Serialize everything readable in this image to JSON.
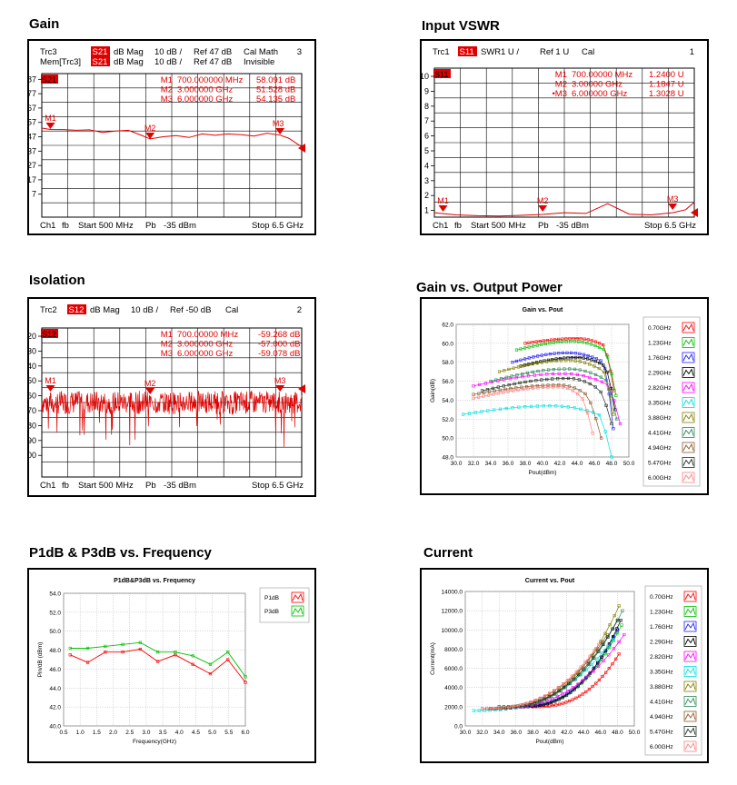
{
  "headings": {
    "gain": "Gain",
    "vswr": "Input VSWR",
    "isolation": "Isolation",
    "gain_pout": "Gain vs. Output Power",
    "p1db": "P1dB & P3dB vs. Frequency",
    "current": "Current"
  },
  "colors": {
    "trace_red": "#e00000",
    "trace_dark_red": "#b00000",
    "marker_red": "#e00000",
    "badge_bg": "#e00000",
    "grid": "#000000"
  },
  "vna_panels": [
    {
      "id": "gain",
      "header_lines": [
        {
          "trace": "Trc3",
          "param": "S21",
          "fmt": "dB Mag",
          "scale": "10 dB /",
          "ref": "Ref 47 dB",
          "extra": "Cal Math",
          "num": "3"
        },
        {
          "trace": "Mem[Trc3]",
          "param": "S21",
          "fmt": "dB Mag",
          "scale": "10 dB /",
          "ref": "Ref 47 dB",
          "extra": "Invisible",
          "num": ""
        }
      ],
      "badge": "S21",
      "y_ticks": [
        "87",
        "77",
        "67",
        "57",
        "47",
        "37",
        "27",
        "17",
        "7"
      ],
      "markers": [
        {
          "name": "M1",
          "freq": "700.000000 MHz",
          "value": "58.091 dB"
        },
        {
          "name": "M2",
          "freq": "3.000000 GHz",
          "value": "51.528 dB"
        },
        {
          "name": "M3",
          "freq": "6.000000 GHz",
          "value": "54.135 dB"
        }
      ],
      "footer": {
        "ch": "Ch1",
        "fb": "fb",
        "start": "Start  500 MHz",
        "pb": "Pb",
        "power": "-35 dBm",
        "stop": "Stop  6.5 GHz"
      }
    },
    {
      "id": "vswr",
      "header_lines": [
        {
          "trace": "Trc1",
          "param": "S11",
          "fmt": "SWR",
          "scale": "1 U /",
          "ref": "Ref 1 U",
          "extra": "Cal",
          "num": "1"
        }
      ],
      "badge": "S11",
      "y_ticks": [
        "10",
        "9",
        "8",
        "7",
        "6",
        "5",
        "4",
        "3",
        "2",
        "1"
      ],
      "markers": [
        {
          "name": "M1",
          "freq": "700.00000 MHz",
          "value": "1.2400  U"
        },
        {
          "name": "M2",
          "freq": "3.00000 GHz",
          "value": "1.1847  U"
        },
        {
          "name": "•M3",
          "freq": "6.000000 GHz",
          "value": "1.3028  U"
        }
      ],
      "footer": {
        "ch": "Ch1",
        "fb": "fb",
        "start": "Start  500 MHz",
        "pb": "Pb",
        "power": "-35 dBm",
        "stop": "Stop  6.5 GHz"
      }
    },
    {
      "id": "isolation",
      "header_lines": [
        {
          "trace": "Trc2",
          "param": "S12",
          "fmt": "dB Mag",
          "scale": "10 dB /",
          "ref": "Ref -50 dB",
          "extra": "Cal",
          "num": "2"
        }
      ],
      "badge": "S12",
      "y_ticks": [
        "-20",
        "-30",
        "-40",
        "-50",
        "-60",
        "-70",
        "-80",
        "-90",
        "-100"
      ],
      "markers": [
        {
          "name": "M1",
          "freq": "700.00000 MHz",
          "value": "-59.268 dB"
        },
        {
          "name": "M2",
          "freq": "3.000000 GHz",
          "value": "-57.000 dB"
        },
        {
          "name": "M3",
          "freq": "6.000000 GHz",
          "value": "-59.078 dB"
        }
      ],
      "footer": {
        "ch": "Ch1",
        "fb": "fb",
        "start": "Start  500 MHz",
        "pb": "Pb",
        "power": "-35 dBm",
        "stop": "Stop  6.5 GHz"
      }
    }
  ],
  "chart_data": [
    {
      "id": "gain",
      "type": "line",
      "x_range_ghz": [
        0.5,
        6.5
      ],
      "ylim": [
        -3,
        97
      ],
      "x": [
        0.5,
        0.7,
        1.0,
        1.3,
        1.6,
        1.9,
        2.2,
        2.5,
        2.8,
        3.0,
        3.3,
        3.6,
        3.9,
        4.2,
        4.5,
        4.8,
        5.1,
        5.4,
        5.7,
        6.0,
        6.2,
        6.4,
        6.5
      ],
      "series": [
        {
          "values": [
            59,
            58.1,
            58,
            57.5,
            57.8,
            56,
            57,
            57.5,
            54,
            51.5,
            53,
            53.8,
            52.5,
            55,
            54,
            55,
            54.5,
            53.5,
            55.5,
            54.1,
            52,
            48,
            46
          ]
        }
      ]
    },
    {
      "id": "vswr",
      "type": "line",
      "x_range_ghz": [
        0.5,
        6.5
      ],
      "ylim": [
        1,
        11
      ],
      "x": [
        0.5,
        0.7,
        1.0,
        1.5,
        2.0,
        2.5,
        3.0,
        3.5,
        4.0,
        4.5,
        5.0,
        5.5,
        6.0,
        6.3,
        6.5
      ],
      "series": [
        {
          "values": [
            1.3,
            1.24,
            1.15,
            1.1,
            1.08,
            1.12,
            1.18,
            1.3,
            1.25,
            1.9,
            1.2,
            1.15,
            1.3,
            1.5,
            2.0
          ]
        }
      ]
    },
    {
      "id": "isolation",
      "type": "line",
      "x_range_ghz": [
        0.5,
        6.5
      ],
      "ylim": [
        -105,
        -15
      ],
      "mean_db": -60,
      "noise_db": 7
    },
    {
      "id": "gain_pout",
      "type": "line",
      "title": "Gain vs. Pout",
      "xlabel": "Pout(dBm)",
      "ylabel": "Gain(dB)",
      "xlim": [
        30.0,
        50.0
      ],
      "ylim": [
        48.0,
        62.0
      ],
      "x_ticks": [
        "30.0",
        "32.0",
        "34.0",
        "36.0",
        "38.0",
        "40.0",
        "42.0",
        "44.0",
        "46.0",
        "48.0",
        "50.0"
      ],
      "y_ticks": [
        "48.0",
        "50.0",
        "52.0",
        "54.0",
        "56.0",
        "58.0",
        "60.0",
        "62.0"
      ],
      "legend_position": "right",
      "series": [
        {
          "name": "0.70GHz",
          "color": "#ff0000",
          "start": 38.0,
          "peak_x": 44.0,
          "peak": 60.5,
          "g0": 60.0,
          "knee": 47.0,
          "end_x": 48.3,
          "end_g": 55.0
        },
        {
          "name": "1.23GHz",
          "color": "#00c000",
          "start": 37.0,
          "peak_x": 43.5,
          "peak": 60.2,
          "g0": 59.3,
          "knee": 47.2,
          "end_x": 48.5,
          "end_g": 54.5
        },
        {
          "name": "1.76GHz",
          "color": "#2020ff",
          "start": 36.5,
          "peak_x": 43.0,
          "peak": 59.0,
          "g0": 58.0,
          "knee": 47.0,
          "end_x": 48.2,
          "end_g": 51.0
        },
        {
          "name": "2.29GHz",
          "color": "#000000",
          "start": 37.5,
          "peak_x": 44.0,
          "peak": 58.5,
          "g0": 57.6,
          "knee": 47.2,
          "end_x": 48.4,
          "end_g": 53.0
        },
        {
          "name": "2.82GHz",
          "color": "#ff00ff",
          "start": 32.0,
          "peak_x": 42.5,
          "peak": 56.8,
          "g0": 55.5,
          "knee": 47.5,
          "end_x": 49.0,
          "end_g": 51.5
        },
        {
          "name": "3.35GHz",
          "color": "#00e0e0",
          "start": 30.8,
          "peak_x": 41.0,
          "peak": 53.4,
          "g0": 52.5,
          "knee": 46.5,
          "end_x": 48.0,
          "end_g": 48.0
        },
        {
          "name": "3.88GHz",
          "color": "#808000",
          "start": 35.0,
          "peak_x": 43.0,
          "peak": 58.2,
          "g0": 57.0,
          "knee": 47.0,
          "end_x": 48.2,
          "end_g": 52.5
        },
        {
          "name": "4.41GHz",
          "color": "#2e8b57",
          "start": 34.0,
          "peak_x": 43.0,
          "peak": 57.3,
          "g0": 56.0,
          "knee": 47.3,
          "end_x": 48.6,
          "end_g": 52.0
        },
        {
          "name": "4.94GHz",
          "color": "#8b5a2b",
          "start": 32.0,
          "peak_x": 42.0,
          "peak": 55.6,
          "g0": 54.6,
          "knee": 45.0,
          "end_x": 46.8,
          "end_g": 50.0
        },
        {
          "name": "5.47GHz",
          "color": "#203020",
          "start": 33.0,
          "peak_x": 43.0,
          "peak": 56.3,
          "g0": 55.0,
          "knee": 46.5,
          "end_x": 48.0,
          "end_g": 51.5
        },
        {
          "name": "6.00GHz",
          "color": "#ff8080",
          "start": 32.0,
          "peak_x": 42.0,
          "peak": 55.4,
          "g0": 54.2,
          "knee": 44.5,
          "end_x": 45.8,
          "end_g": 50.5
        }
      ]
    },
    {
      "id": "p1db",
      "type": "line",
      "title": "P1dB&P3dB vs. Frequency",
      "xlabel": "Frequency(GHz)",
      "ylabel": "Pin/dB (dBm)",
      "xlim": [
        0.5,
        6.0
      ],
      "ylim": [
        40.0,
        54.0
      ],
      "x_ticks": [
        "0.5",
        "1.0",
        "1.5",
        "2.0",
        "2.5",
        "3.0",
        "3.5",
        "4.0",
        "4.5",
        "5.0",
        "5.5",
        "6.0"
      ],
      "y_ticks": [
        "40.0",
        "42.0",
        "44.0",
        "46.0",
        "48.0",
        "50.0",
        "52.0",
        "54.0"
      ],
      "legend_position": "right",
      "x": [
        0.7,
        1.23,
        1.76,
        2.29,
        2.82,
        3.35,
        3.88,
        4.41,
        4.94,
        5.47,
        6.0
      ],
      "series": [
        {
          "name": "P1dB",
          "color": "#ff0000",
          "values": [
            47.5,
            46.7,
            47.8,
            47.8,
            48.1,
            46.8,
            47.5,
            46.5,
            45.5,
            47.0,
            44.6
          ]
        },
        {
          "name": "P3dB",
          "color": "#00c000",
          "values": [
            48.2,
            48.2,
            48.4,
            48.6,
            48.8,
            47.8,
            47.8,
            47.4,
            46.5,
            47.8,
            45.2
          ]
        }
      ]
    },
    {
      "id": "current",
      "type": "line",
      "title": "Current vs. Pout",
      "xlabel": "Pout(dBm)",
      "ylabel": "Current(mA)",
      "xlim": [
        30.0,
        50.0
      ],
      "ylim": [
        0.0,
        14000.0
      ],
      "x_ticks": [
        "30.0",
        "32.0",
        "34.0",
        "36.0",
        "38.0",
        "40.0",
        "42.0",
        "44.0",
        "46.0",
        "48.0",
        "50.0"
      ],
      "y_ticks": [
        "0.0",
        "2000.0",
        "4000.0",
        "6000.0",
        "8000.0",
        "10000.0",
        "12000.0",
        "14000.0"
      ],
      "legend_position": "right",
      "series": [
        {
          "name": "0.70GHz",
          "color": "#ff0000",
          "start": 38.0,
          "end": 48.2,
          "i0": 2000,
          "i_end": 7500
        },
        {
          "name": "1.23GHz",
          "color": "#00c000",
          "start": 36.0,
          "end": 48.5,
          "i0": 2000,
          "i_end": 10500
        },
        {
          "name": "1.76GHz",
          "color": "#2020ff",
          "start": 36.0,
          "end": 48.0,
          "i0": 2000,
          "i_end": 10000
        },
        {
          "name": "2.29GHz",
          "color": "#000000",
          "start": 36.5,
          "end": 48.4,
          "i0": 2000,
          "i_end": 11000
        },
        {
          "name": "2.82GHz",
          "color": "#ff00ff",
          "start": 33.0,
          "end": 48.8,
          "i0": 1800,
          "i_end": 9500
        },
        {
          "name": "3.35GHz",
          "color": "#00e0e0",
          "start": 31.0,
          "end": 47.5,
          "i0": 1600,
          "i_end": 9000
        },
        {
          "name": "3.88GHz",
          "color": "#808000",
          "start": 34.0,
          "end": 48.2,
          "i0": 2000,
          "i_end": 12500
        },
        {
          "name": "4.41GHz",
          "color": "#2e8b57",
          "start": 34.0,
          "end": 48.6,
          "i0": 2000,
          "i_end": 12000
        },
        {
          "name": "4.94GHz",
          "color": "#8b5a2b",
          "start": 32.0,
          "end": 46.8,
          "i0": 1800,
          "i_end": 9500
        },
        {
          "name": "5.47GHz",
          "color": "#203020",
          "start": 33.0,
          "end": 48.0,
          "i0": 1800,
          "i_end": 11000
        },
        {
          "name": "6.00GHz",
          "color": "#ff8080",
          "start": 32.0,
          "end": 45.8,
          "i0": 1800,
          "i_end": 8500
        }
      ]
    }
  ]
}
